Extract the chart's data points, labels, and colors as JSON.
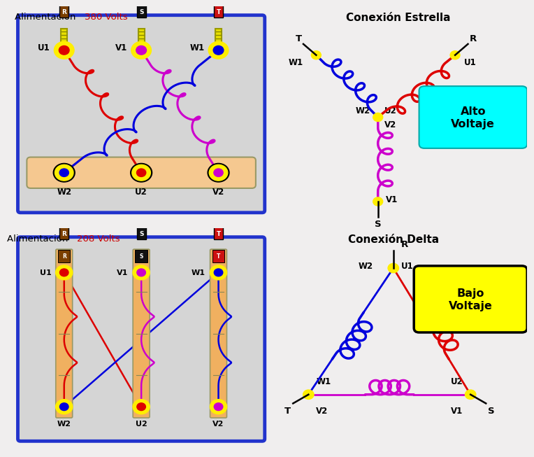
{
  "bg_color": "#f0eeee",
  "title_380": "Alimentación   380 Volts",
  "title_208": "Alimentación   208 Volts",
  "title_estrella": "Conexión Estrella",
  "title_delta": "Conexión Delta",
  "alto_voltaje": "Alto\nVoltaje",
  "bajo_voltaje": "Bajo\nVoltaje",
  "color_wire_red": "#dd0000",
  "color_wire_blue": "#0000dd",
  "color_wire_magenta": "#cc00cc",
  "color_yellow": "#ffee00",
  "color_box_fill": "#d0d0d0",
  "color_box_border": "#2233cc",
  "color_plug_body": "#f0b060",
  "color_alto_fill": "#00ffff",
  "color_bajo_fill": "#ffff00",
  "cap_colors": [
    "#7B3F00",
    "#111111",
    "#cc1111"
  ],
  "upper_dot_colors": [
    "#dd0000",
    "#cc00cc",
    "#0000dd"
  ],
  "lower_dot_colors": [
    "#0000dd",
    "#dd0000",
    "#cc00cc"
  ],
  "letters_rst": [
    "R",
    "S",
    "T"
  ],
  "upper_lbls": [
    "U1",
    "V1",
    "W1"
  ],
  "lower_lbls": [
    "W2",
    "U2",
    "V2"
  ]
}
